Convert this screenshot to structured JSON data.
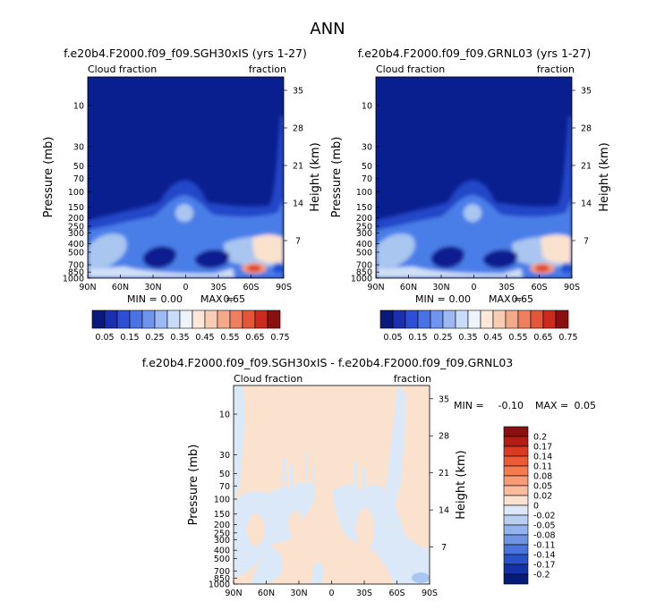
{
  "page_title": "ANN",
  "colors": {
    "deep_blue": "#0a1f8f",
    "blue": "#1f4fd6",
    "mid_blue": "#4a7ee8",
    "light_blue": "#a8c6f0",
    "pale_blue": "#dbe8f8",
    "peach": "#fbe2cf",
    "salmon": "#f5a07a",
    "red": "#e2432a",
    "dark_red": "#8a0f0f"
  },
  "panels": [
    {
      "title": "f.e20b4.F2000.f09_f09.SGH30xIS (yrs 1-27)",
      "top_left_label": "Cloud fraction",
      "top_right_label": "fraction",
      "min_label": "MIN =",
      "min_value": "0.00",
      "max_label": "MAX =",
      "max_value": "0.65"
    },
    {
      "title": "f.e20b4.F2000.f09_f09.GRNL03 (yrs 1-27)",
      "top_left_label": "Cloud fraction",
      "top_right_label": "fraction",
      "min_label": "MIN =",
      "min_value": "0.00",
      "max_label": "MAX =",
      "max_value": "0.65"
    },
    {
      "title": "f.e20b4.F2000.f09_f09.SGH30xIS - f.e20b4.F2000.f09_f09.GRNL03",
      "top_left_label": "Cloud fraction",
      "top_right_label": "fraction",
      "min_label": "MIN =",
      "min_value": "-0.10",
      "max_label": "MAX =",
      "max_value": "0.05"
    }
  ],
  "chart_data": {
    "type": "heatmap",
    "title": "ANN",
    "field": "Cloud fraction",
    "xlabel": "",
    "ylabel": "Pressure (mb)",
    "y2label": "Height (km)",
    "x_ticks": [
      "90N",
      "60N",
      "30N",
      "0",
      "30S",
      "60S",
      "90S"
    ],
    "y_ticks": [
      "10",
      "30",
      "50",
      "70",
      "100",
      "150",
      "200",
      "250",
      "300",
      "400",
      "500",
      "700",
      "850",
      "1000"
    ],
    "y2_ticks": [
      "35",
      "28",
      "21",
      "14",
      "7"
    ],
    "colorbar_top": {
      "orientation": "horizontal",
      "levels": [
        "0.05",
        "0.15",
        "0.25",
        "0.35",
        "0.45",
        "0.55",
        "0.65",
        "0.75"
      ],
      "colors": [
        "#0a1a7a",
        "#1b2fb0",
        "#2d4fd6",
        "#4a72e4",
        "#6f94ee",
        "#9cb9f4",
        "#c8dcf8",
        "#eef4fc",
        "#fce7d8",
        "#f9cdb3",
        "#f4a98a",
        "#ee8060",
        "#e4563a",
        "#cc2a1c",
        "#8a0f0f"
      ]
    },
    "colorbar_diff": {
      "orientation": "vertical",
      "levels": [
        "0.2",
        "0.17",
        "0.14",
        "0.11",
        "0.08",
        "0.05",
        "0.02",
        "0",
        "-0.02",
        "-0.05",
        "-0.08",
        "-0.11",
        "-0.14",
        "-0.17",
        "-0.2"
      ],
      "colors": [
        "#8a0f0f",
        "#b51c14",
        "#d93a22",
        "#ee5a36",
        "#f47a52",
        "#f79a76",
        "#f9bc9e",
        "#fde2d0",
        "#dce8f8",
        "#b8cff2",
        "#93b3ec",
        "#6e94e4",
        "#4a74da",
        "#2a52c8",
        "#1432a8",
        "#061a7a"
      ]
    },
    "panels": [
      {
        "name": "SGH30xIS",
        "min": 0.0,
        "max": 0.65
      },
      {
        "name": "GRNL03",
        "min": 0.0,
        "max": 0.65
      },
      {
        "name": "SGH30xIS - GRNL03",
        "min": -0.1,
        "max": 0.05
      }
    ]
  }
}
